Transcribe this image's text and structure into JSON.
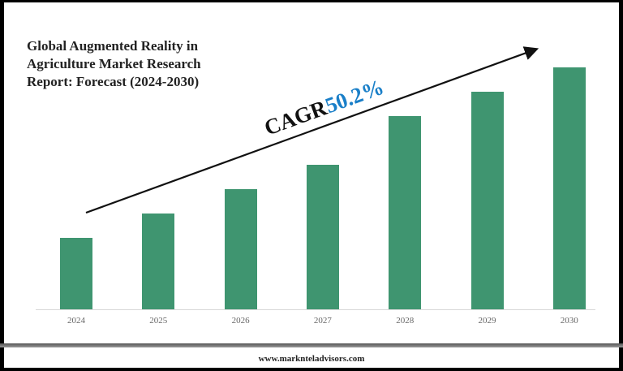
{
  "header": {
    "title": "Global Augmented Reality in Agriculture Market Research Report: Forecast (2024-2030)"
  },
  "annotation": {
    "cagr_label": "CAGR",
    "cagr_value": "50.2%",
    "cagr_value_color": "#1a7fc8"
  },
  "footer": {
    "website": "www.marknteladvisors.com"
  },
  "colors": {
    "bar": "#3f9570",
    "arrow": "#111111",
    "axis_label": "#666666"
  },
  "chart_data": {
    "type": "bar",
    "title": "Global Augmented Reality in Agriculture Market Research Report: Forecast (2024-2030)",
    "categories": [
      "2024",
      "2025",
      "2026",
      "2027",
      "2028",
      "2029",
      "2030"
    ],
    "values": [
      88,
      118,
      148,
      178,
      238,
      268,
      298
    ],
    "value_note": "Relative bar heights in pixels; no y-axis or values shown",
    "xlabel": "",
    "ylabel": "",
    "grid": false,
    "legend": null,
    "annotations": [
      "CAGR 50.2%"
    ]
  }
}
